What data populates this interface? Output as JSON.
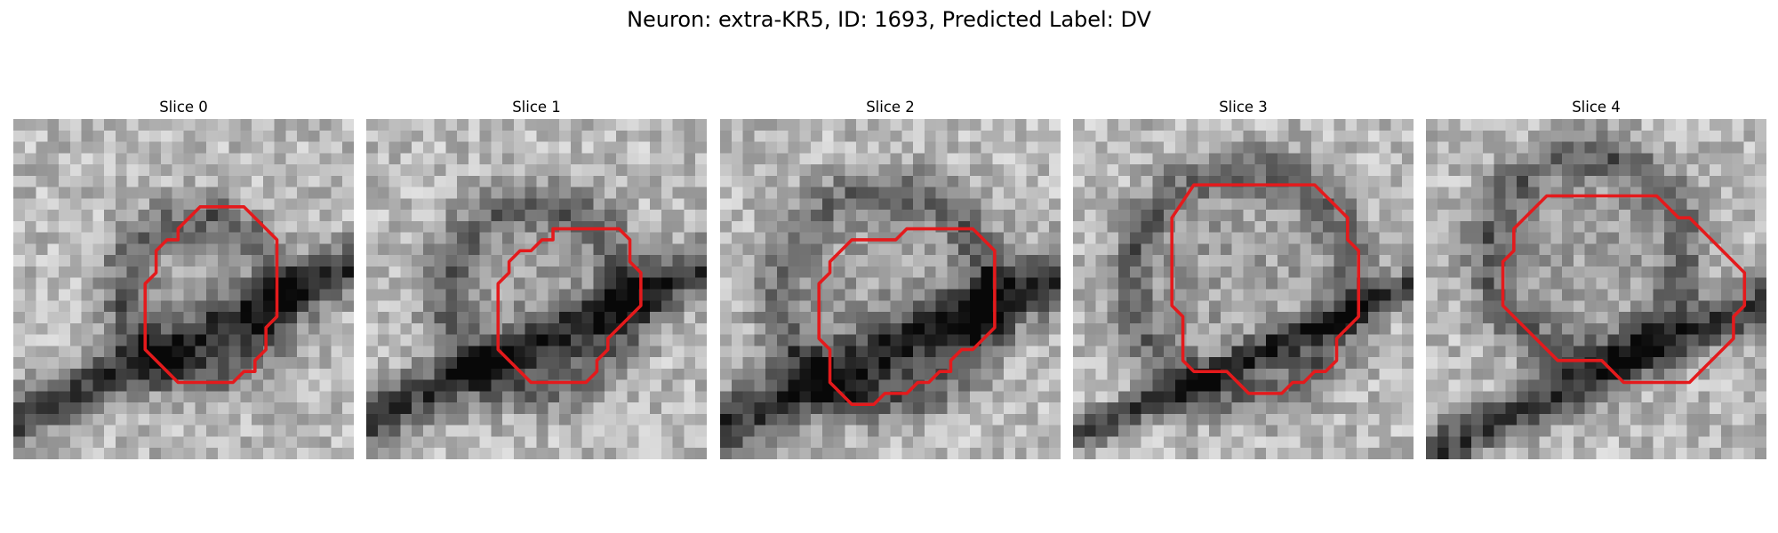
{
  "figure": {
    "title": "Neuron: extra-KR5, ID: 1693, Predicted Label: DV",
    "contour_color": "#e41a1c",
    "colormap": "gray"
  },
  "panels": [
    {
      "title": "Slice 0",
      "contour": [
        [
          8,
          3.5
        ],
        [
          10,
          3.5
        ],
        [
          11.5,
          5
        ],
        [
          11.5,
          8.5
        ],
        [
          11,
          9
        ],
        [
          11,
          10
        ],
        [
          10.5,
          10.5
        ],
        [
          10.5,
          11
        ],
        [
          10,
          11
        ],
        [
          9.5,
          11.5
        ],
        [
          7,
          11.5
        ],
        [
          5.5,
          10
        ],
        [
          5.5,
          7
        ],
        [
          6,
          6.5
        ],
        [
          6,
          5.5
        ],
        [
          6.5,
          5
        ],
        [
          7,
          5
        ],
        [
          7,
          4.5
        ]
      ]
    },
    {
      "title": "Slice 1",
      "contour": [
        [
          8,
          4.5
        ],
        [
          11,
          4.5
        ],
        [
          11.5,
          5
        ],
        [
          11.5,
          6
        ],
        [
          12,
          6.5
        ],
        [
          12,
          8
        ],
        [
          10.5,
          9.5
        ],
        [
          10.5,
          10
        ],
        [
          10,
          10.5
        ],
        [
          10,
          11
        ],
        [
          9.5,
          11.5
        ],
        [
          7,
          11.5
        ],
        [
          5.5,
          10
        ],
        [
          5.5,
          7
        ],
        [
          6,
          6.5
        ],
        [
          6,
          6
        ],
        [
          6.5,
          5.5
        ],
        [
          7,
          5.5
        ],
        [
          7.5,
          5
        ],
        [
          8,
          5
        ]
      ]
    },
    {
      "title": "Slice 2",
      "contour": [
        [
          8,
          4.5
        ],
        [
          11,
          4.5
        ],
        [
          12,
          5.5
        ],
        [
          12,
          9
        ],
        [
          11,
          10
        ],
        [
          10.5,
          10
        ],
        [
          10,
          10.5
        ],
        [
          10,
          11
        ],
        [
          9.5,
          11
        ],
        [
          9,
          11.5
        ],
        [
          8.5,
          11.5
        ],
        [
          8,
          12
        ],
        [
          7,
          12
        ],
        [
          6.5,
          12.5
        ],
        [
          5.5,
          12.5
        ],
        [
          5,
          12
        ],
        [
          4.5,
          11.5
        ],
        [
          4.5,
          10
        ],
        [
          4,
          9.5
        ],
        [
          4,
          7
        ],
        [
          4.5,
          6.5
        ],
        [
          4.5,
          6
        ],
        [
          5.5,
          5
        ],
        [
          7.5,
          5
        ]
      ]
    },
    {
      "title": "Slice 3",
      "contour": [
        [
          5,
          2.5
        ],
        [
          10.5,
          2.5
        ],
        [
          12,
          4
        ],
        [
          12,
          5
        ],
        [
          12.5,
          5.5
        ],
        [
          12.5,
          8.5
        ],
        [
          11.5,
          9.5
        ],
        [
          11.5,
          10.5
        ],
        [
          11,
          11
        ],
        [
          10.5,
          11
        ],
        [
          10,
          11.5
        ],
        [
          9.5,
          11.5
        ],
        [
          9,
          12
        ],
        [
          7.5,
          12
        ],
        [
          6.5,
          11
        ],
        [
          5,
          11
        ],
        [
          4.5,
          10.5
        ],
        [
          4.5,
          8.5
        ],
        [
          4,
          8
        ],
        [
          4,
          4
        ]
      ]
    },
    {
      "title": "Slice 4",
      "contour": [
        [
          8,
          3
        ],
        [
          10,
          3
        ],
        [
          11,
          4
        ],
        [
          11.5,
          4
        ],
        [
          12,
          4.5
        ],
        [
          12.5,
          5
        ],
        [
          13,
          5.5
        ],
        [
          14,
          6.5
        ],
        [
          14,
          8
        ],
        [
          13.5,
          8.5
        ],
        [
          13.5,
          9.5
        ],
        [
          11.5,
          11.5
        ],
        [
          9.5,
          11.5
        ],
        [
          8.5,
          11.5
        ],
        [
          7.5,
          10.5
        ],
        [
          7,
          10.5
        ],
        [
          5.5,
          10.5
        ],
        [
          3.5,
          8.5
        ],
        [
          3,
          8
        ],
        [
          3,
          6
        ],
        [
          3.5,
          5.5
        ],
        [
          3.5,
          4.5
        ],
        [
          5,
          3
        ]
      ]
    }
  ]
}
